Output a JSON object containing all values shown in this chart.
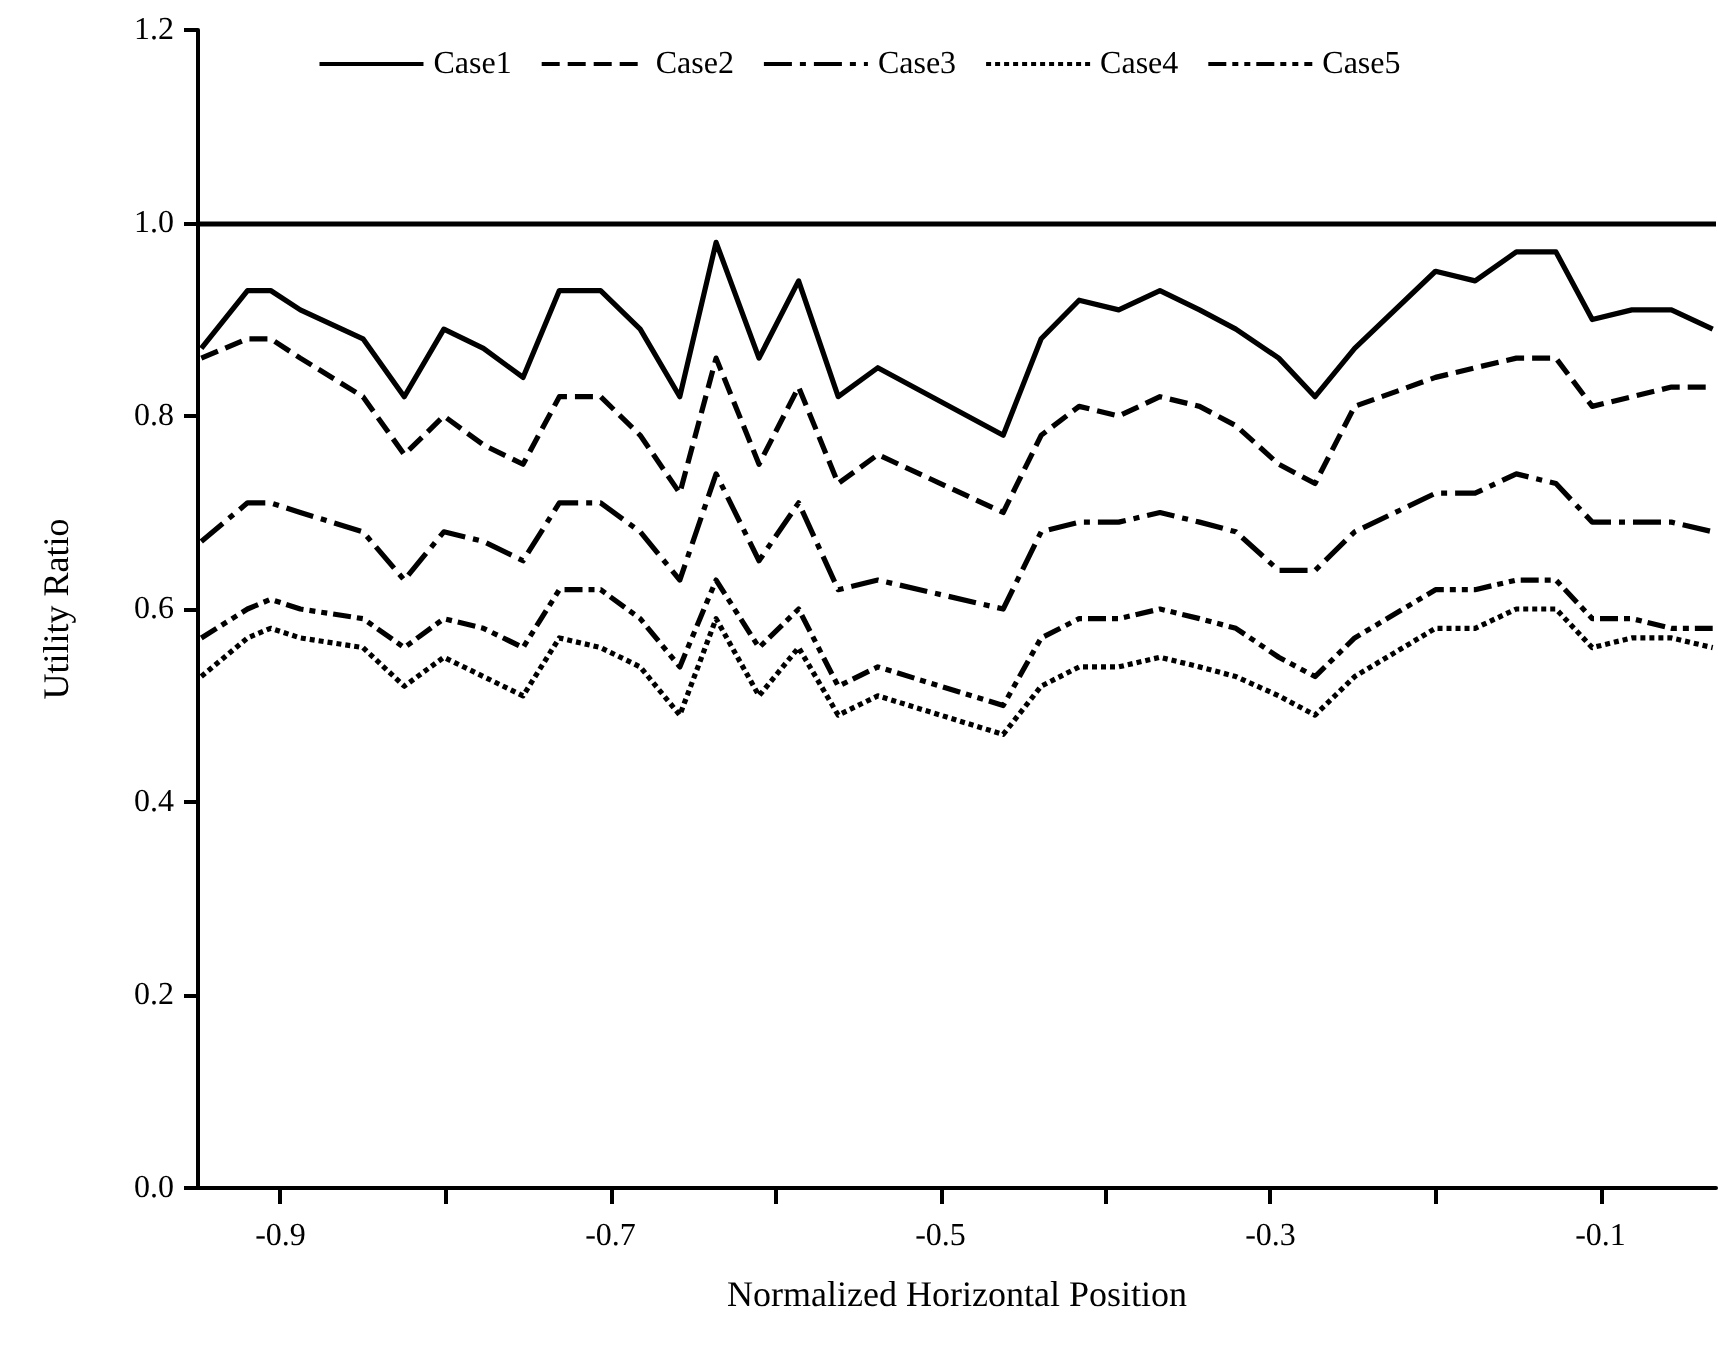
{
  "chart_data": {
    "type": "line",
    "xlabel": "Normalized Horizontal Position",
    "ylabel": "Utility Ratio",
    "x": [
      -0.948,
      -0.92,
      -0.906,
      -0.888,
      -0.85,
      -0.825,
      -0.801,
      -0.777,
      -0.753,
      -0.731,
      -0.706,
      -0.682,
      -0.658,
      -0.636,
      -0.61,
      -0.586,
      -0.562,
      -0.538,
      -0.462,
      -0.439,
      -0.416,
      -0.392,
      -0.367,
      -0.343,
      -0.321,
      -0.295,
      -0.273,
      -0.249,
      -0.2,
      -0.176,
      -0.151,
      -0.127,
      -0.105,
      -0.081,
      -0.057,
      -0.032
    ],
    "series": [
      {
        "name": "Case1",
        "color": "#000000",
        "line_style": "solid",
        "values": [
          0.87,
          0.93,
          0.93,
          0.91,
          0.88,
          0.82,
          0.89,
          0.87,
          0.84,
          0.93,
          0.93,
          0.89,
          0.82,
          0.98,
          0.86,
          0.94,
          0.82,
          0.85,
          0.78,
          0.88,
          0.92,
          0.91,
          0.93,
          0.91,
          0.89,
          0.86,
          0.82,
          0.87,
          0.95,
          0.94,
          0.97,
          0.97,
          0.9,
          0.91,
          0.91,
          0.89
        ]
      },
      {
        "name": "Case2",
        "color": "#000000",
        "line_style": "dashed",
        "values": [
          0.86,
          0.88,
          0.88,
          0.86,
          0.82,
          0.76,
          0.8,
          0.77,
          0.75,
          0.82,
          0.82,
          0.78,
          0.72,
          0.86,
          0.75,
          0.83,
          0.73,
          0.76,
          0.7,
          0.78,
          0.81,
          0.8,
          0.82,
          0.81,
          0.79,
          0.75,
          0.73,
          0.81,
          0.84,
          0.85,
          0.86,
          0.86,
          0.81,
          0.82,
          0.83,
          0.83
        ]
      },
      {
        "name": "Case3",
        "color": "#000000",
        "line_style": "dashdot",
        "values": [
          0.67,
          0.71,
          0.71,
          0.7,
          0.68,
          0.63,
          0.68,
          0.67,
          0.65,
          0.71,
          0.71,
          0.68,
          0.63,
          0.74,
          0.65,
          0.71,
          0.62,
          0.63,
          0.6,
          0.68,
          0.69,
          0.69,
          0.7,
          0.69,
          0.68,
          0.64,
          0.64,
          0.68,
          0.72,
          0.72,
          0.74,
          0.73,
          0.69,
          0.69,
          0.69,
          0.68
        ]
      },
      {
        "name": "Case4",
        "color": "#000000",
        "line_style": "dotted",
        "values": [
          0.53,
          0.57,
          0.58,
          0.57,
          0.56,
          0.52,
          0.55,
          0.53,
          0.51,
          0.57,
          0.56,
          0.54,
          0.49,
          0.59,
          0.51,
          0.56,
          0.49,
          0.51,
          0.47,
          0.52,
          0.54,
          0.54,
          0.55,
          0.54,
          0.53,
          0.51,
          0.49,
          0.53,
          0.58,
          0.58,
          0.6,
          0.6,
          0.56,
          0.57,
          0.57,
          0.56
        ]
      },
      {
        "name": "Case5",
        "color": "#000000",
        "line_style": "dashdotdot",
        "values": [
          0.57,
          0.6,
          0.61,
          0.6,
          0.59,
          0.56,
          0.59,
          0.58,
          0.56,
          0.62,
          0.62,
          0.59,
          0.54,
          0.63,
          0.56,
          0.6,
          0.52,
          0.54,
          0.5,
          0.57,
          0.59,
          0.59,
          0.6,
          0.59,
          0.58,
          0.55,
          0.53,
          0.57,
          0.62,
          0.62,
          0.63,
          0.63,
          0.59,
          0.59,
          0.58,
          0.58
        ]
      }
    ],
    "xlim": [
      -0.95,
      -0.03
    ],
    "xticks": [
      -0.9,
      {
        "value": -0.8,
        "label": null
      },
      -0.7,
      {
        "value": -0.6,
        "label": null
      },
      -0.5,
      {
        "value": -0.4,
        "label": null
      },
      -0.3,
      {
        "value": -0.2,
        "label": null
      },
      -0.1
    ],
    "ylim": [
      0,
      1.2
    ],
    "yticks": [
      {
        "value": 0,
        "label": "0.0"
      },
      0.2,
      0.4,
      0.6,
      0.8,
      {
        "value": 1,
        "label": "1.0"
      },
      1.2
    ],
    "ref_lines": [
      {
        "axis": "y",
        "value": 1,
        "color": "#000000",
        "line_style": "solid"
      }
    ],
    "grid": false,
    "legend": "top",
    "marker": "none"
  }
}
